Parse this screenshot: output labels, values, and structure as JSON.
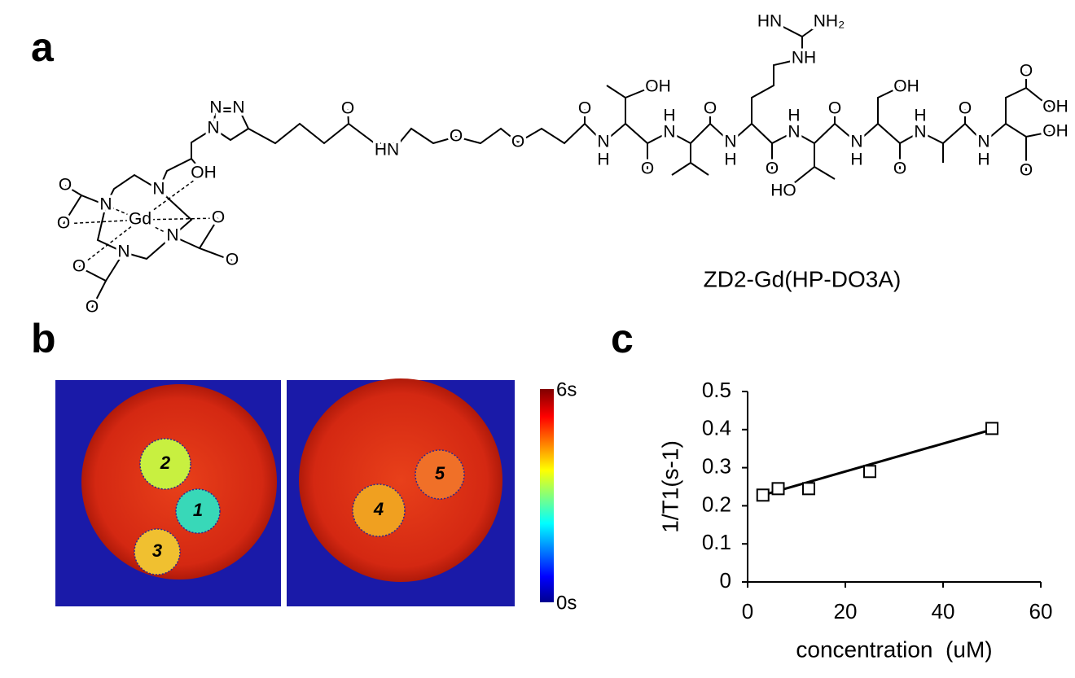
{
  "panels": [
    "a",
    "b",
    "c"
  ],
  "structure": {
    "name": "ZD2-Gd(HP-DO3A)",
    "atoms": [
      "N",
      "N",
      "N",
      "OH",
      "N",
      "N",
      "Gd",
      "O",
      "O",
      "N",
      "N",
      "O",
      "O",
      "O",
      "O",
      "O",
      "HN",
      "O",
      "O",
      "O",
      "N",
      "H",
      "OH",
      "O",
      "H",
      "N",
      "O",
      "N",
      "H",
      "O",
      "H",
      "N",
      "HO",
      "O",
      "N",
      "H",
      "OH",
      "O",
      "H",
      "N",
      "O",
      "N",
      "H",
      "O",
      "OH",
      "OH",
      "O",
      "HN",
      "NH₂",
      "NH"
    ]
  },
  "mri": {
    "spots": [
      "1",
      "2",
      "3",
      "4",
      "5"
    ],
    "colorbar": [
      "6s",
      "0s"
    ]
  },
  "chart_data": {
    "type": "scatter",
    "x": [
      3.125,
      6.25,
      12.5,
      25,
      50
    ],
    "values": [
      0.228,
      0.245,
      0.245,
      0.29,
      0.403
    ],
    "trendline": {
      "x": [
        3.125,
        50
      ],
      "values": [
        0.228,
        0.4
      ]
    },
    "xlim": [
      0,
      60
    ],
    "xticks": [
      0,
      20,
      40,
      60
    ],
    "ylim": [
      0,
      0.5
    ],
    "yticks": [
      0,
      0.1,
      0.2,
      0.3,
      0.4,
      0.5
    ],
    "xlabel": "concentration  (uM)",
    "ylabel": "1/T1(s-1)",
    "color": "#000000",
    "marker": "square"
  }
}
